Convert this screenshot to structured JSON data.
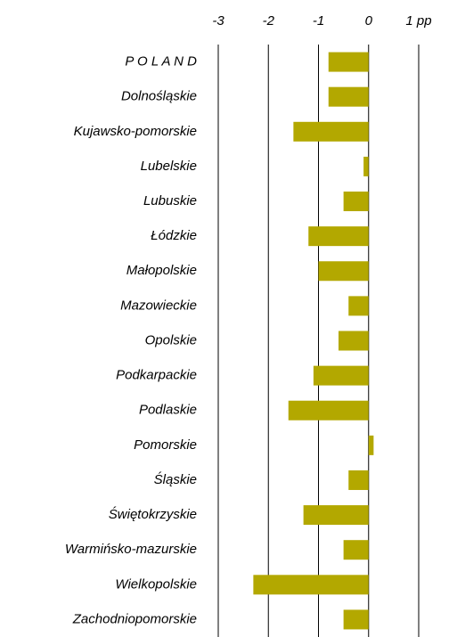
{
  "chart_data": {
    "type": "hbar",
    "categories": [
      "P O L A N D",
      "Dolnośląskie",
      "Kujawsko-pomorskie",
      "Lubelskie",
      "Lubuskie",
      "Łódzkie",
      "Małopolskie",
      "Mazowieckie",
      "Opolskie",
      "Podkarpackie",
      "Podlaskie",
      "Pomorskie",
      "Śląskie",
      "Świętokrzyskie",
      "Warmińsko-mazurskie",
      "Wielkopolskie",
      "Zachodniopomorskie"
    ],
    "values": [
      -0.8,
      -0.8,
      -1.5,
      -0.1,
      -0.5,
      -1.2,
      -1.0,
      -0.4,
      -0.6,
      -1.1,
      -1.6,
      0.1,
      -0.4,
      -1.3,
      -0.5,
      -2.3,
      -0.5
    ],
    "color": "#b3a800",
    "xlim": [
      -3,
      1
    ],
    "xticks": [
      -3,
      -2,
      -1,
      0,
      {
        "value": 1,
        "label": "1 pp"
      }
    ],
    "grid": true
  }
}
